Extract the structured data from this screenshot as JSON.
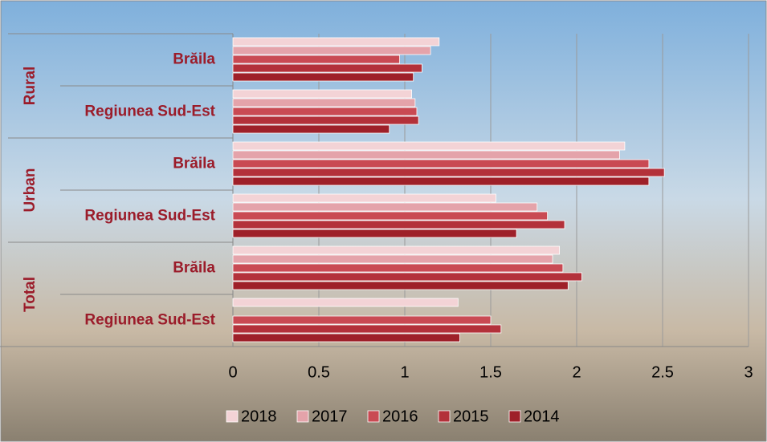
{
  "chart_data": {
    "type": "hbar",
    "categories": [
      "Brăila",
      "Regiunea Sud-Est",
      "Brăila",
      "Regiunea Sud-Est",
      "Brăila",
      "Regiunea Sud-Est"
    ],
    "category_groups": [
      "Rural",
      "Urban",
      "Total"
    ],
    "series": [
      {
        "name": "2018",
        "color": "#f3d3d6",
        "values": [
          1.2,
          1.04,
          2.28,
          1.53,
          1.9,
          1.31
        ]
      },
      {
        "name": "2017",
        "color": "#e4a3aa",
        "values": [
          1.15,
          1.06,
          2.25,
          1.77,
          1.86,
          null
        ]
      },
      {
        "name": "2016",
        "color": "#c94a53",
        "values": [
          0.97,
          1.07,
          2.42,
          1.83,
          1.92,
          1.5
        ]
      },
      {
        "name": "2015",
        "color": "#b3313a",
        "values": [
          1.1,
          1.08,
          2.51,
          1.93,
          2.03,
          1.56
        ]
      },
      {
        "name": "2014",
        "color": "#9e2029",
        "values": [
          1.05,
          0.91,
          2.42,
          1.65,
          1.95,
          1.32
        ]
      }
    ],
    "xlim": [
      0,
      3
    ],
    "xticks": [
      0,
      0.5,
      1,
      1.5,
      2,
      2.5,
      3
    ],
    "grid": true
  }
}
